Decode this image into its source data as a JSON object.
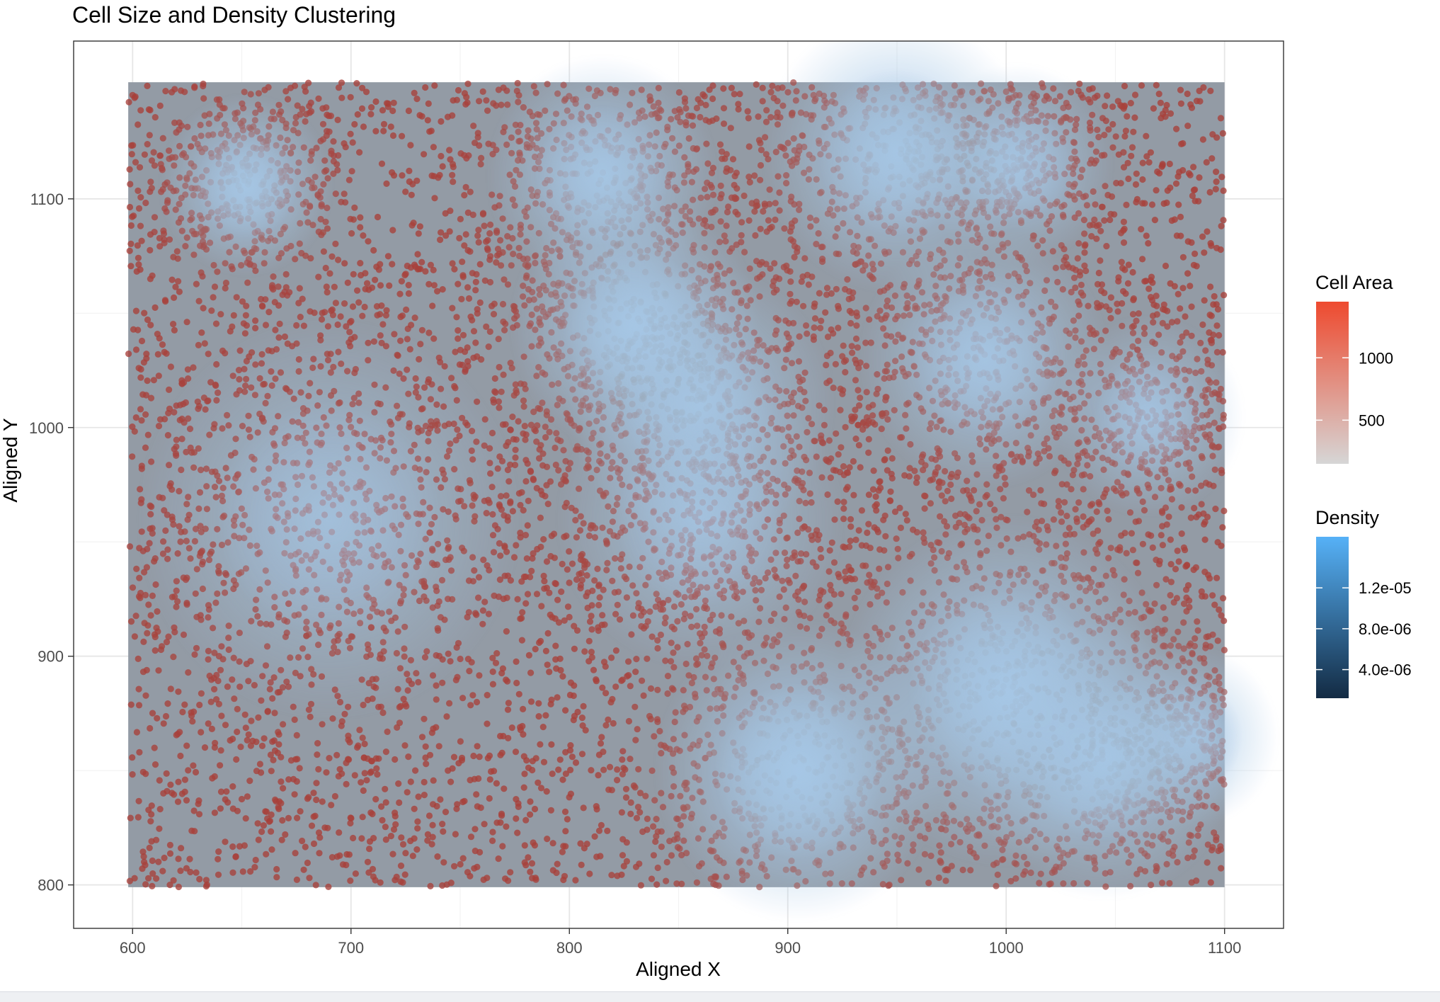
{
  "chart_data": {
    "type": "scatter",
    "title": "Cell Size and Density Clustering",
    "xlabel": "Aligned X",
    "ylabel": "Aligned Y",
    "xlim": [
      573,
      1127
    ],
    "ylim": [
      781,
      1169
    ],
    "xticks": [
      600,
      700,
      800,
      900,
      1000,
      1100
    ],
    "yticks": [
      800,
      900,
      1000,
      1100
    ],
    "xtick_labels": [
      "600",
      "700",
      "800",
      "900",
      "1000",
      "1100"
    ],
    "ytick_labels": [
      "800",
      "900",
      "1000",
      "1100"
    ],
    "grid": true,
    "data_extent": {
      "x": [
        598,
        1100
      ],
      "y": [
        799,
        1151
      ]
    },
    "point_count_estimate": 9000,
    "legend_position": "right",
    "legends": [
      {
        "title": "Cell Area",
        "aesthetic": "color",
        "low_color": "#d6d6d6",
        "high_color": "#ee4a2f",
        "range": [
          150,
          1450
        ],
        "breaks": [
          500,
          1000
        ],
        "break_labels": [
          "500",
          "1000"
        ]
      },
      {
        "title": "Density",
        "aesthetic": "fill",
        "low_color": "#132b43",
        "high_color": "#56b1f7",
        "range": [
          1.2e-06,
          1.7e-05
        ],
        "breaks": [
          4e-06,
          8e-06,
          1.2e-05
        ],
        "break_labels": [
          "4.0e-06",
          "8.0e-06",
          "1.2e-05"
        ]
      }
    ],
    "density_clusters": [
      {
        "x": 652,
        "y": 1106,
        "sd": 18,
        "weight": 1.0
      },
      {
        "x": 830,
        "y": 1045,
        "sd": 26,
        "weight": 1.1
      },
      {
        "x": 815,
        "y": 1110,
        "sd": 24,
        "weight": 0.9
      },
      {
        "x": 860,
        "y": 1010,
        "sd": 28,
        "weight": 0.7
      },
      {
        "x": 950,
        "y": 1120,
        "sd": 28,
        "weight": 1.0
      },
      {
        "x": 1005,
        "y": 1115,
        "sd": 20,
        "weight": 0.7
      },
      {
        "x": 990,
        "y": 1030,
        "sd": 26,
        "weight": 0.8
      },
      {
        "x": 1065,
        "y": 1005,
        "sd": 20,
        "weight": 0.6
      },
      {
        "x": 905,
        "y": 850,
        "sd": 30,
        "weight": 1.3
      },
      {
        "x": 1000,
        "y": 885,
        "sd": 35,
        "weight": 1.2
      },
      {
        "x": 1045,
        "y": 855,
        "sd": 28,
        "weight": 0.9
      },
      {
        "x": 1085,
        "y": 865,
        "sd": 18,
        "weight": 0.5
      },
      {
        "x": 860,
        "y": 960,
        "sd": 30,
        "weight": 0.4
      },
      {
        "x": 690,
        "y": 960,
        "sd": 40,
        "weight": 0.3
      }
    ],
    "colors": {
      "panel_background": "#939ba5",
      "grid_line": "#ebebeb",
      "panel_border": "#333333",
      "point_high": "#a8403a",
      "point_low": "#9aa4b2",
      "density_peak": "#a6c7e6"
    }
  }
}
